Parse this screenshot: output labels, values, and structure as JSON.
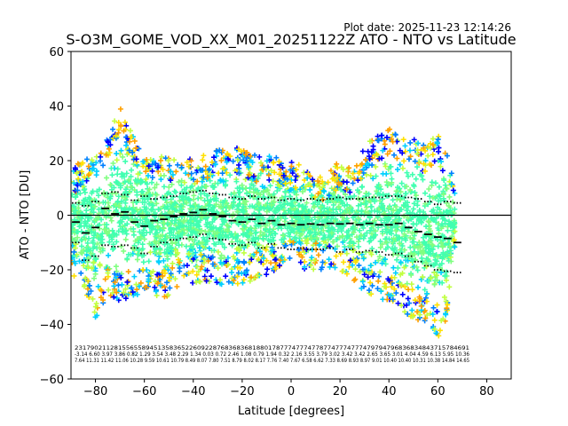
{
  "chart_data": {
    "type": "scatter",
    "plot_date": "Plot date: 2025-11-23 12:14:26",
    "title": "S-O3M_GOME_VOD_XX_M01_20251122Z ATO - NTO vs Latitude",
    "xlabel": "Latitude [degrees]",
    "ylabel": "ATO - NTO [DU]",
    "xlim": [
      -90,
      90
    ],
    "ylim": [
      -60,
      60
    ],
    "xticks": [
      -80,
      -60,
      -40,
      -20,
      0,
      20,
      40,
      60,
      80
    ],
    "yticks": [
      -60,
      -40,
      -20,
      0,
      20,
      40,
      60
    ],
    "xtick_labels": [
      "−80",
      "−60",
      "−40",
      "−20",
      "0",
      "20",
      "40",
      "60",
      "80"
    ],
    "ytick_labels": [
      "−60",
      "−40",
      "−20",
      "0",
      "20",
      "40",
      "60"
    ],
    "reference_line_y": 0,
    "point_colors": [
      "#0000ff",
      "#0080ff",
      "#00d0ff",
      "#40ffb0",
      "#80ff80",
      "#c0ff40",
      "#ffe000",
      "#ffa000"
    ],
    "envelope": {
      "lat": [
        -89,
        -85,
        -80,
        -75,
        -70,
        -65,
        -60,
        -55,
        -50,
        -45,
        -40,
        -35,
        -30,
        -25,
        -20,
        -15,
        -10,
        -5,
        0,
        5,
        10,
        15,
        20,
        25,
        30,
        35,
        40,
        45,
        50,
        55,
        60,
        65,
        67
      ],
      "upper": [
        18,
        20,
        22,
        30,
        40,
        30,
        25,
        22,
        22,
        20,
        22,
        22,
        25,
        25,
        25,
        22,
        22,
        22,
        20,
        18,
        15,
        16,
        20,
        18,
        25,
        30,
        32,
        28,
        30,
        25,
        30,
        20,
        10
      ],
      "lower": [
        -22,
        -28,
        -38,
        -30,
        -32,
        -30,
        -28,
        -30,
        -30,
        -25,
        -25,
        -24,
        -26,
        -26,
        -25,
        -24,
        -22,
        -20,
        -18,
        -20,
        -20,
        -20,
        -20,
        -24,
        -28,
        -30,
        -32,
        -35,
        -38,
        -40,
        -45,
        -35,
        -12
      ]
    },
    "mean_bins": {
      "lat": [
        -88,
        -84,
        -80,
        -76,
        -72,
        -68,
        -64,
        -60,
        -56,
        -52,
        -48,
        -44,
        -40,
        -36,
        -32,
        -28,
        -24,
        -20,
        -16,
        -12,
        -8,
        -4,
        0,
        4,
        8,
        12,
        16,
        20,
        24,
        28,
        32,
        36,
        40,
        44,
        48,
        52,
        56,
        60,
        64,
        68
      ],
      "mean": [
        -2.5,
        -6.5,
        -4.5,
        2.5,
        0.5,
        1.2,
        -2.5,
        -4.0,
        -2.0,
        -1.5,
        -0.5,
        0.5,
        1.0,
        2.0,
        0.5,
        -0.5,
        -2.0,
        -2.5,
        -1.5,
        -3.0,
        -2.0,
        -3.5,
        -3.0,
        -3.5,
        -3.2,
        -3.5,
        -3.0,
        -3.2,
        -3.0,
        -3.5,
        -3.0,
        -3.5,
        -3.5,
        -3.0,
        -4.5,
        -6.0,
        -7.0,
        -8.0,
        -8.5,
        -10.0
      ],
      "plus": [
        4.5,
        3.5,
        5.0,
        8.0,
        8.5,
        7.5,
        5.5,
        7.0,
        6.0,
        6.5,
        7.0,
        8.0,
        8.5,
        9.0,
        8.0,
        7.5,
        6.5,
        6.0,
        7.0,
        6.0,
        6.5,
        5.5,
        6.0,
        5.5,
        6.0,
        5.5,
        6.0,
        6.5,
        6.0,
        6.0,
        6.5,
        6.5,
        7.0,
        7.0,
        6.5,
        6.0,
        5.0,
        4.0,
        5.0,
        4.5
      ],
      "minus": [
        -10.0,
        -16.5,
        -15.0,
        -11.0,
        -11.5,
        -11.0,
        -12.0,
        -14.0,
        -11.5,
        -10.0,
        -9.0,
        -8.5,
        -8.0,
        -7.0,
        -8.5,
        -9.0,
        -10.5,
        -11.0,
        -10.0,
        -12.0,
        -10.5,
        -12.0,
        -12.5,
        -12.0,
        -12.5,
        -12.5,
        -12.0,
        -13.5,
        -12.5,
        -13.5,
        -13.0,
        -13.5,
        -14.5,
        -14.0,
        -15.0,
        -17.0,
        -18.5,
        -20.0,
        -20.5,
        -21.0
      ]
    },
    "stat_row1": "2317902112815565589451358365226092287683683681880178777477747787747774777479794796836834843715784691",
    "stat_row2": "-3.14 6.60 3.97 3.86 0.82 1.29 3.54 3.48 2.29 1.34 0.03 0.72 2.46 1.08 0.79 1.94 0.32 2.16 3.55 3.79 3.02 3.42 3.42 2.65 3.65 3.01 4.04 4.59 6.13 5.95 10.36",
    "stat_row3": "7.64 11.31 11.42 11.06 10.28 9.59 10.61 10.79 8.49 8.07 7.80 7.51 8.79 8.02 8.17 7.76 7.40 7.67 6.58 6.62 7.33 8.69 8.93 8.97 9.01 10.40 10.40 10.31 10.38 14.84 14.65"
  }
}
